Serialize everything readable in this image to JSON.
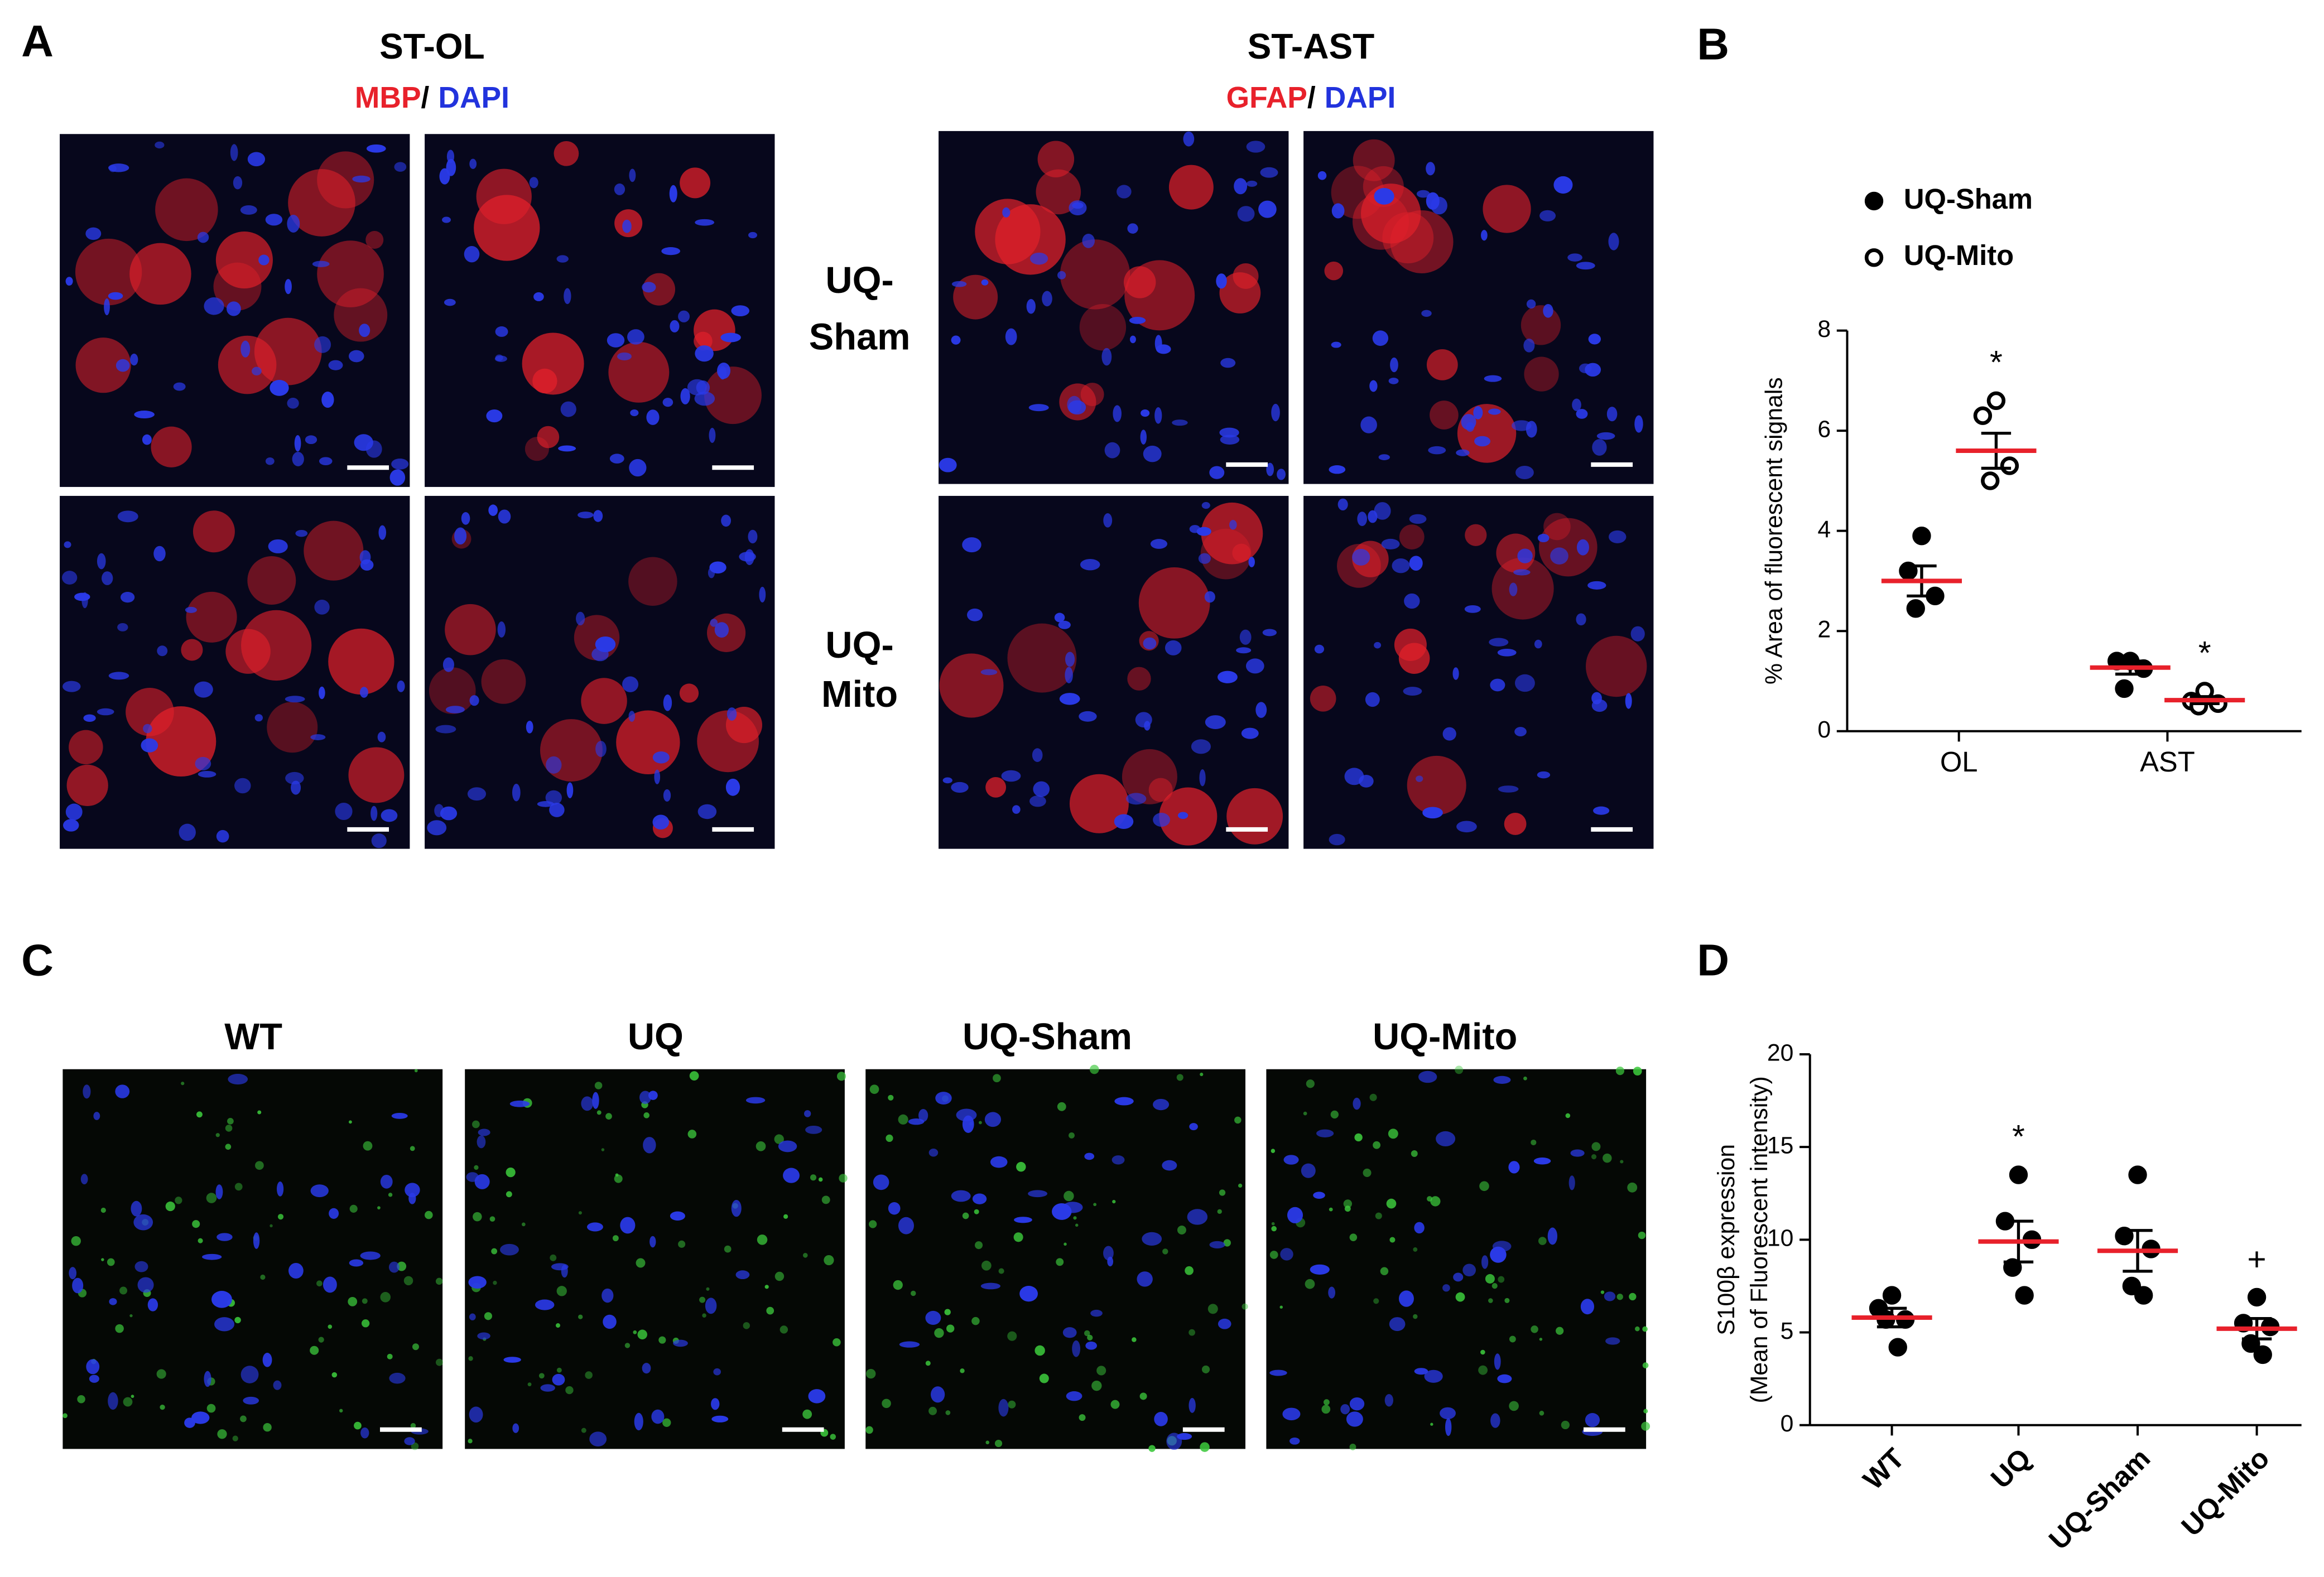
{
  "figure": {
    "panels": [
      "A",
      "B",
      "C",
      "D"
    ],
    "a_groups": [
      {
        "title": "ST-OL",
        "stain": [
          "MBP",
          "/",
          "DAPI"
        ]
      },
      {
        "title": "ST-AST",
        "stain": [
          "GFAP",
          "/",
          "DAPI"
        ]
      }
    ],
    "a_rows": [
      [
        "UQ-",
        "Sham"
      ],
      [
        "UQ-",
        "Mito"
      ]
    ],
    "c_titles": [
      "WT",
      "UQ",
      "UQ-Sham",
      "UQ-Mito"
    ]
  },
  "chart_data": [
    {
      "type": "dot",
      "ylabel": [
        "% Area of fluorescent signals"
      ],
      "categories": [
        "OL",
        "AST"
      ],
      "ylim": [
        0,
        8
      ],
      "yticks": [
        0,
        2,
        4,
        6,
        8
      ],
      "legend": "top-left",
      "mean_color": "#e8212b",
      "series": [
        {
          "name": "UQ-Sham",
          "marker": "filled",
          "color": "#000000",
          "values": [
            [
              3.9,
              3.2,
              2.7,
              2.45
            ],
            [
              1.4,
              1.4,
              1.25,
              0.85
            ]
          ],
          "mean": [
            3.0,
            1.27
          ],
          "sem": [
            0.3,
            0.13
          ]
        },
        {
          "name": "UQ-Mito",
          "marker": "open",
          "color": "#000000",
          "values": [
            [
              6.6,
              6.3,
              5.3,
              5.0
            ],
            [
              0.8,
              0.6,
              0.55,
              0.5
            ]
          ],
          "mean": [
            5.6,
            0.62
          ],
          "sem": [
            0.35,
            0.07
          ],
          "annotations": [
            "*",
            "*"
          ]
        }
      ]
    },
    {
      "type": "dot",
      "ylabel": [
        "S100β expression",
        "(Mean of Fluorescent intensity)"
      ],
      "categories": [
        "WT",
        "UQ",
        "UQ-Sham",
        "UQ-Mito"
      ],
      "ylim": [
        0,
        20
      ],
      "yticks": [
        0,
        5,
        10,
        15,
        20
      ],
      "mean_color": "#e8212b",
      "series": [
        {
          "marker": "filled",
          "color": "#000000",
          "values": [
            [
              7.0,
              6.3,
              5.7,
              5.7,
              4.2
            ],
            [
              13.5,
              11.0,
              10.0,
              8.5,
              7.0
            ],
            [
              13.5,
              10.2,
              9.5,
              7.5,
              7.0
            ],
            [
              6.9,
              5.5,
              5.3,
              4.4,
              3.8
            ]
          ],
          "mean": [
            5.8,
            9.9,
            9.4,
            5.2
          ],
          "sem": [
            0.5,
            1.1,
            1.1,
            0.55
          ],
          "annotations": [
            null,
            "*",
            null,
            "+"
          ]
        }
      ]
    }
  ]
}
